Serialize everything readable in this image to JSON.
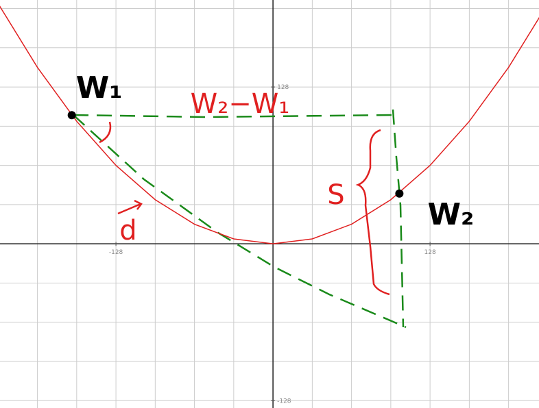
{
  "axes": {
    "xlim": [
      -222.5,
      216.8
    ],
    "ylim": [
      -134,
      199
    ],
    "xticks": [
      -128,
      128
    ],
    "yticks": [
      128,
      -128
    ],
    "grid_step": 32
  },
  "curve": {
    "color": "#e02020",
    "x": [
      -224,
      -192,
      -160,
      -128,
      -96,
      -64,
      -32,
      0,
      32,
      64,
      96,
      128,
      160,
      192,
      224
    ],
    "y": [
      196,
      144,
      100,
      64,
      36,
      16,
      4,
      0,
      4,
      16,
      36,
      64,
      100,
      144,
      196
    ]
  },
  "points": [
    {
      "label": "W₁",
      "x": -164,
      "y": 105
    },
    {
      "label": "W₂",
      "x": 103,
      "y": 41
    }
  ],
  "annotations": {
    "difference": "W₂−W₁",
    "side": "S",
    "vector": "d"
  }
}
